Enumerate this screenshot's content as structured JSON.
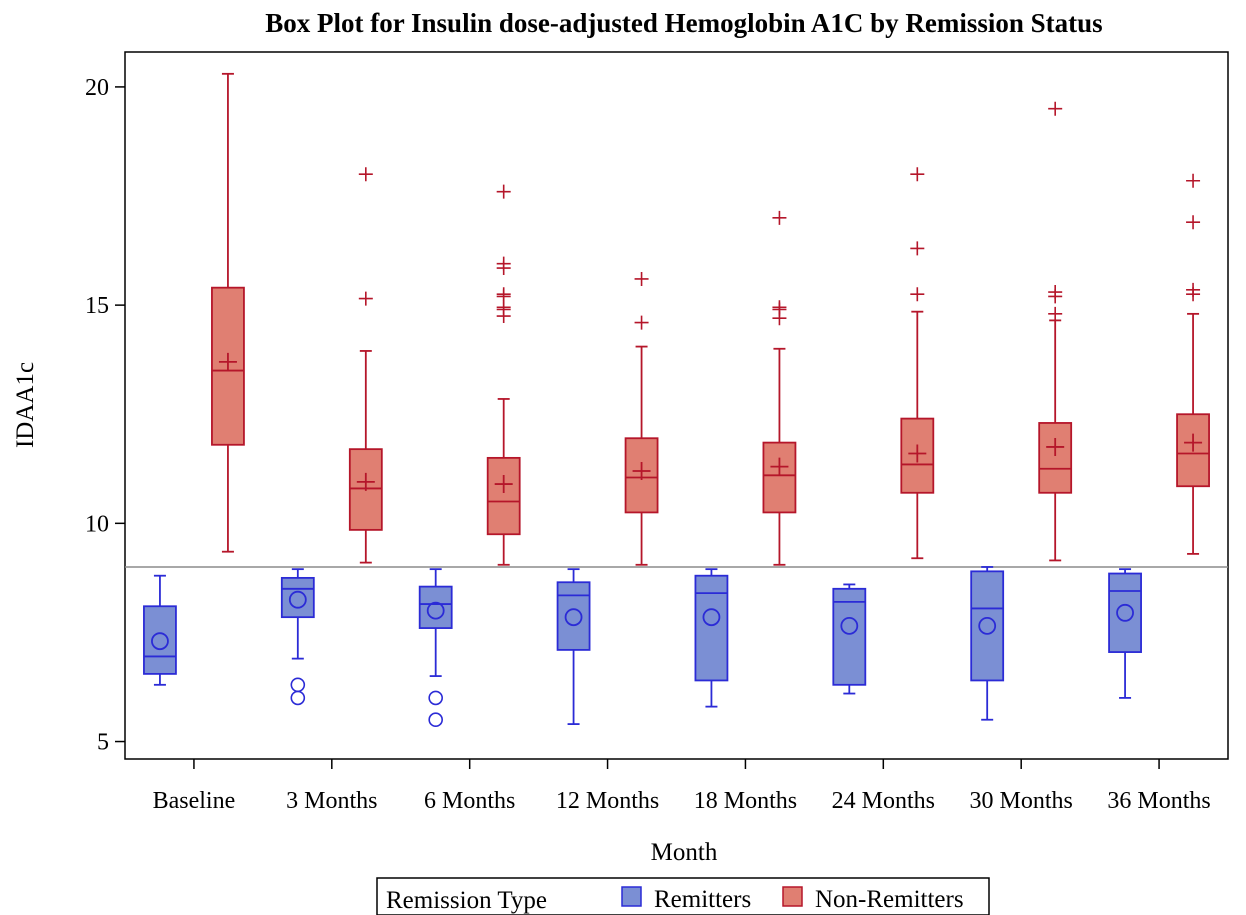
{
  "chart_data": {
    "type": "box",
    "title": "Box Plot for Insulin dose-adjusted Hemoglobin A1C by Remission Status",
    "xlabel": "Month",
    "ylabel": "IDAA1c",
    "ylim": [
      4.6,
      20.8
    ],
    "yticks": [
      5,
      10,
      15,
      20
    ],
    "reference_line": 9,
    "categories": [
      "Baseline",
      "3 Months",
      "6 Months",
      "12 Months",
      "18 Months",
      "24 Months",
      "30 Months",
      "36 Months"
    ],
    "legend": {
      "title": "Remission Type",
      "placement": "bottom"
    },
    "series": [
      {
        "name": "Remitters",
        "color": "#7b8fd4",
        "stroke": "#2b2bd6",
        "outlier_marker": "circle",
        "boxes": [
          {
            "min": 6.3,
            "q1": 6.55,
            "median": 6.95,
            "q3": 8.1,
            "max": 8.8,
            "mean": 7.3,
            "outliers": []
          },
          {
            "min": 6.9,
            "q1": 7.85,
            "median": 8.5,
            "q3": 8.75,
            "max": 8.95,
            "mean": 8.25,
            "outliers": [
              6.3,
              6.0
            ]
          },
          {
            "min": 6.5,
            "q1": 7.6,
            "median": 8.15,
            "q3": 8.55,
            "max": 8.95,
            "mean": 8.0,
            "outliers": [
              6.0,
              5.5
            ]
          },
          {
            "min": 5.4,
            "q1": 7.1,
            "median": 8.35,
            "q3": 8.65,
            "max": 8.95,
            "mean": 7.85,
            "outliers": []
          },
          {
            "min": 5.8,
            "q1": 6.4,
            "median": 8.4,
            "q3": 8.8,
            "max": 8.95,
            "mean": 7.85,
            "outliers": []
          },
          {
            "min": 6.1,
            "q1": 6.3,
            "median": 8.2,
            "q3": 8.5,
            "max": 8.6,
            "mean": 7.65,
            "outliers": []
          },
          {
            "min": 5.5,
            "q1": 6.4,
            "median": 8.05,
            "q3": 8.9,
            "max": 9.0,
            "mean": 7.65,
            "outliers": []
          },
          {
            "min": 6.0,
            "q1": 7.05,
            "median": 8.45,
            "q3": 8.85,
            "max": 8.95,
            "mean": 7.95,
            "outliers": []
          }
        ]
      },
      {
        "name": "Non-Remitters",
        "color": "#e07f72",
        "stroke": "#b5162a",
        "outlier_marker": "plus",
        "boxes": [
          {
            "min": 9.35,
            "q1": 11.8,
            "median": 13.5,
            "q3": 15.4,
            "max": 20.3,
            "mean": 13.7,
            "outliers": []
          },
          {
            "min": 9.1,
            "q1": 9.85,
            "median": 10.8,
            "q3": 11.7,
            "max": 13.95,
            "mean": 10.95,
            "outliers": [
              18.0,
              15.15
            ]
          },
          {
            "min": 9.05,
            "q1": 9.75,
            "median": 10.5,
            "q3": 11.5,
            "max": 12.85,
            "mean": 10.9,
            "outliers": [
              17.6,
              15.95,
              15.85,
              15.25,
              15.2,
              14.95,
              14.9,
              14.75
            ]
          },
          {
            "min": 9.05,
            "q1": 10.25,
            "median": 11.05,
            "q3": 11.95,
            "max": 14.05,
            "mean": 11.2,
            "outliers": [
              15.6,
              14.6
            ]
          },
          {
            "min": 9.05,
            "q1": 10.25,
            "median": 11.1,
            "q3": 11.85,
            "max": 14.0,
            "mean": 11.3,
            "outliers": [
              17.0,
              14.95,
              14.9,
              14.7
            ]
          },
          {
            "min": 9.2,
            "q1": 10.7,
            "median": 11.35,
            "q3": 12.4,
            "max": 14.85,
            "mean": 11.6,
            "outliers": [
              18.0,
              16.3,
              15.25
            ]
          },
          {
            "min": 9.15,
            "q1": 10.7,
            "median": 11.25,
            "q3": 12.3,
            "max": 14.65,
            "mean": 11.75,
            "outliers": [
              19.5,
              15.3,
              15.2,
              14.8
            ]
          },
          {
            "min": 9.3,
            "q1": 10.85,
            "median": 11.6,
            "q3": 12.5,
            "max": 14.8,
            "mean": 11.85,
            "outliers": [
              17.85,
              16.9,
              15.35,
              15.25
            ]
          }
        ]
      }
    ]
  }
}
